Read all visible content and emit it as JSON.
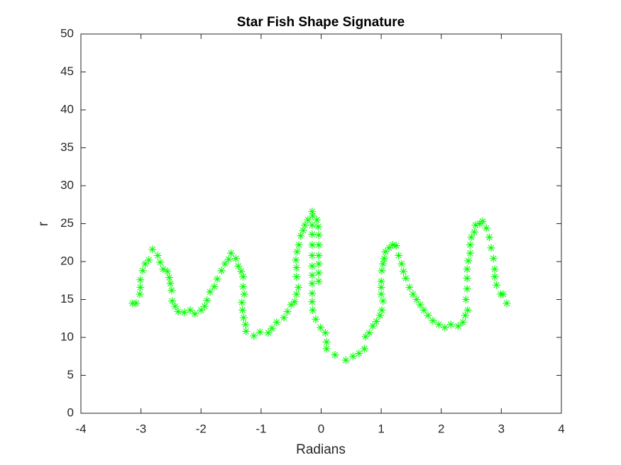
{
  "chart_data": {
    "type": "scatter",
    "title": "Star Fish Shape Signature",
    "x_label": "Radians",
    "y_label": "r",
    "xlim": [
      -4,
      4
    ],
    "xticks": [
      -4,
      -3,
      -2,
      -1,
      0,
      1,
      2,
      3,
      4
    ],
    "ylim": [
      0,
      50
    ],
    "yticks": [
      0,
      5,
      10,
      15,
      20,
      25,
      30,
      35,
      40,
      45,
      50
    ],
    "marker": "asterisk",
    "color": "#00ff00",
    "x": [
      -3.14,
      -3.08,
      -3.02,
      -3.01,
      -3.01,
      -2.97,
      -2.93,
      -2.87,
      -2.81,
      -2.72,
      -2.68,
      -2.63,
      -2.56,
      -2.53,
      -2.51,
      -2.49,
      -2.48,
      -2.43,
      -2.38,
      -2.28,
      -2.18,
      -2.1,
      -2.0,
      -1.94,
      -1.9,
      -1.85,
      -1.78,
      -1.73,
      -1.66,
      -1.6,
      -1.54,
      -1.5,
      -1.42,
      -1.38,
      -1.33,
      -1.3,
      -1.3,
      -1.28,
      -1.32,
      -1.31,
      -1.29,
      -1.26,
      -1.25,
      -1.12,
      -1.02,
      -0.88,
      -0.82,
      -0.74,
      -0.62,
      -0.56,
      -0.5,
      -0.44,
      -0.41,
      -0.38,
      -0.41,
      -0.41,
      -0.42,
      -0.4,
      -0.37,
      -0.34,
      -0.3,
      -0.27,
      -0.22,
      -0.15,
      -0.14,
      -0.15,
      -0.15,
      -0.15,
      -0.15,
      -0.15,
      -0.15,
      -0.15,
      -0.15,
      -0.15,
      -0.14,
      -0.07,
      -0.05,
      -0.04,
      -0.04,
      -0.04,
      -0.04,
      -0.04,
      -0.04,
      -0.09,
      -0.01,
      0.07,
      0.09,
      0.09,
      0.23,
      0.41,
      0.53,
      0.63,
      0.72,
      0.74,
      0.8,
      0.86,
      0.92,
      0.98,
      1.01,
      1.03,
      1.0,
      1.0,
      1.0,
      1.01,
      1.03,
      1.05,
      1.07,
      1.13,
      1.19,
      1.25,
      1.29,
      1.34,
      1.37,
      1.41,
      1.47,
      1.53,
      1.59,
      1.65,
      1.71,
      1.78,
      1.86,
      1.96,
      2.06,
      2.16,
      2.28,
      2.36,
      2.4,
      2.44,
      2.41,
      2.43,
      2.43,
      2.43,
      2.45,
      2.48,
      2.48,
      2.5,
      2.55,
      2.57,
      2.64,
      2.69,
      2.75,
      2.8,
      2.83,
      2.87,
      2.89,
      2.89,
      2.92,
      2.99,
      3.03,
      3.09
    ],
    "y": [
      14.5,
      14.5,
      15.7,
      16.6,
      17.6,
      18.8,
      19.7,
      20.2,
      21.6,
      20.8,
      19.9,
      19.0,
      18.7,
      17.9,
      17.1,
      16.2,
      14.8,
      14.1,
      13.4,
      13.3,
      13.6,
      13.1,
      13.6,
      14.1,
      14.9,
      16.0,
      16.7,
      17.7,
      18.8,
      19.7,
      20.3,
      21.1,
      20.4,
      19.4,
      18.7,
      18.0,
      16.7,
      15.7,
      14.6,
      13.6,
      12.6,
      11.7,
      10.8,
      10.2,
      10.7,
      10.6,
      11.2,
      12.0,
      12.6,
      13.4,
      14.3,
      14.7,
      15.7,
      16.6,
      18.0,
      19.2,
      20.2,
      21.3,
      22.2,
      23.4,
      24.1,
      24.8,
      25.5,
      26.6,
      26.0,
      24.8,
      23.6,
      22.2,
      20.8,
      19.4,
      18.2,
      17.1,
      15.8,
      14.7,
      13.6,
      25.5,
      24.6,
      23.5,
      22.2,
      20.8,
      19.7,
      18.5,
      17.4,
      12.4,
      11.3,
      10.6,
      9.4,
      8.5,
      7.7,
      7.0,
      7.5,
      7.9,
      8.5,
      10.1,
      10.6,
      11.5,
      12.1,
      12.9,
      13.6,
      14.8,
      15.7,
      16.6,
      17.4,
      18.8,
      19.7,
      20.4,
      21.3,
      21.8,
      22.2,
      22.1,
      20.8,
      19.7,
      18.7,
      17.8,
      16.6,
      15.7,
      15.0,
      14.3,
      13.6,
      12.9,
      12.2,
      11.7,
      11.3,
      11.7,
      11.5,
      12.0,
      12.9,
      13.6,
      15.0,
      16.4,
      17.8,
      19.0,
      20.1,
      21.1,
      22.2,
      23.2,
      23.9,
      24.8,
      25.0,
      25.3,
      24.4,
      23.2,
      21.8,
      20.4,
      19.0,
      18.0,
      16.9,
      15.7,
      15.7,
      14.5
    ]
  }
}
